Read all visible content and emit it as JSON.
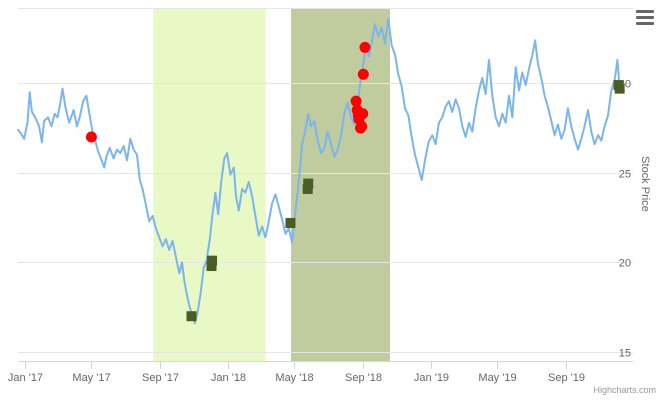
{
  "chart_data": {
    "type": "line",
    "title": "",
    "ylabel": "Stock Price",
    "ylim": [
      14.5,
      34.2
    ],
    "yticks": [
      15,
      20,
      25,
      30
    ],
    "xlim": [
      "2016-12-20",
      "2019-12-31"
    ],
    "xticks": [
      {
        "date": "2017-01-01",
        "label": "Jan '17"
      },
      {
        "date": "2017-05-01",
        "label": "May '17"
      },
      {
        "date": "2017-09-01",
        "label": "Sep '17"
      },
      {
        "date": "2018-01-01",
        "label": "Jan '18"
      },
      {
        "date": "2018-05-01",
        "label": "May '18"
      },
      {
        "date": "2018-09-01",
        "label": "Sep '18"
      },
      {
        "date": "2019-01-01",
        "label": "Jan '19"
      },
      {
        "date": "2019-05-01",
        "label": "May '19"
      },
      {
        "date": "2019-09-01",
        "label": "Sep '19"
      }
    ],
    "grid": true,
    "legend": "none",
    "bands": [
      {
        "from": "2017-08-20",
        "to": "2018-03-10",
        "color": "#e9f9c6"
      },
      {
        "from": "2018-04-25",
        "to": "2018-10-20",
        "color": "#c0cc9e"
      }
    ],
    "price_series": {
      "color": "#7cb5ec",
      "points": [
        [
          "2016-12-20",
          27.4
        ],
        [
          "2016-12-25",
          27.2
        ],
        [
          "2016-12-31",
          26.9
        ],
        [
          "2017-01-06",
          27.8
        ],
        [
          "2017-01-10",
          29.5
        ],
        [
          "2017-01-14",
          28.4
        ],
        [
          "2017-01-20",
          28.1
        ],
        [
          "2017-01-27",
          27.6
        ],
        [
          "2017-02-01",
          26.7
        ],
        [
          "2017-02-05",
          27.9
        ],
        [
          "2017-02-12",
          28.1
        ],
        [
          "2017-02-18",
          27.6
        ],
        [
          "2017-02-24",
          28.3
        ],
        [
          "2017-03-01",
          28.1
        ],
        [
          "2017-03-06",
          28.9
        ],
        [
          "2017-03-10",
          29.7
        ],
        [
          "2017-03-15",
          28.7
        ],
        [
          "2017-03-22",
          27.8
        ],
        [
          "2017-03-30",
          28.5
        ],
        [
          "2017-04-05",
          27.6
        ],
        [
          "2017-04-10",
          28.1
        ],
        [
          "2017-04-16",
          29.0
        ],
        [
          "2017-04-22",
          29.3
        ],
        [
          "2017-04-28",
          28.2
        ],
        [
          "2017-05-03",
          27.3
        ],
        [
          "2017-05-07",
          26.9
        ],
        [
          "2017-05-13",
          26.2
        ],
        [
          "2017-05-18",
          25.8
        ],
        [
          "2017-05-24",
          25.3
        ],
        [
          "2017-05-28",
          25.9
        ],
        [
          "2017-06-03",
          26.4
        ],
        [
          "2017-06-10",
          25.8
        ],
        [
          "2017-06-16",
          26.3
        ],
        [
          "2017-06-22",
          26.1
        ],
        [
          "2017-06-28",
          26.5
        ],
        [
          "2017-07-04",
          25.7
        ],
        [
          "2017-07-10",
          26.9
        ],
        [
          "2017-07-16",
          26.3
        ],
        [
          "2017-07-22",
          26.0
        ],
        [
          "2017-07-27",
          24.6
        ],
        [
          "2017-08-01",
          24.1
        ],
        [
          "2017-08-07",
          23.2
        ],
        [
          "2017-08-13",
          22.3
        ],
        [
          "2017-08-19",
          22.6
        ],
        [
          "2017-08-25",
          21.9
        ],
        [
          "2017-08-31",
          21.4
        ],
        [
          "2017-09-06",
          20.9
        ],
        [
          "2017-09-12",
          21.3
        ],
        [
          "2017-09-18",
          20.7
        ],
        [
          "2017-09-24",
          21.2
        ],
        [
          "2017-09-30",
          20.3
        ],
        [
          "2017-10-06",
          19.4
        ],
        [
          "2017-10-11",
          20.0
        ],
        [
          "2017-10-15",
          19.0
        ],
        [
          "2017-10-19",
          18.3
        ],
        [
          "2017-10-24",
          17.6
        ],
        [
          "2017-10-29",
          17.1
        ],
        [
          "2017-11-03",
          16.6
        ],
        [
          "2017-11-08",
          17.2
        ],
        [
          "2017-11-14",
          18.4
        ],
        [
          "2017-11-19",
          19.7
        ],
        [
          "2017-11-24",
          20.1
        ],
        [
          "2017-11-30",
          21.3
        ],
        [
          "2017-12-04",
          22.5
        ],
        [
          "2017-12-10",
          23.9
        ],
        [
          "2017-12-15",
          22.7
        ],
        [
          "2017-12-20",
          24.4
        ],
        [
          "2017-12-26",
          25.8
        ],
        [
          "2017-12-31",
          26.1
        ],
        [
          "2018-01-06",
          24.9
        ],
        [
          "2018-01-12",
          25.3
        ],
        [
          "2018-01-16",
          23.7
        ],
        [
          "2018-01-21",
          22.9
        ],
        [
          "2018-01-27",
          24.1
        ],
        [
          "2018-02-02",
          23.9
        ],
        [
          "2018-02-08",
          24.5
        ],
        [
          "2018-02-14",
          23.7
        ],
        [
          "2018-02-20",
          22.6
        ],
        [
          "2018-02-26",
          21.5
        ],
        [
          "2018-03-04",
          22.0
        ],
        [
          "2018-03-10",
          21.4
        ],
        [
          "2018-03-16",
          22.3
        ],
        [
          "2018-03-22",
          23.3
        ],
        [
          "2018-03-28",
          23.8
        ],
        [
          "2018-04-03",
          23.1
        ],
        [
          "2018-04-09",
          22.4
        ],
        [
          "2018-04-15",
          21.6
        ],
        [
          "2018-04-21",
          21.9
        ],
        [
          "2018-04-27",
          21.1
        ],
        [
          "2018-05-03",
          22.9
        ],
        [
          "2018-05-09",
          24.5
        ],
        [
          "2018-05-15",
          26.6
        ],
        [
          "2018-05-21",
          27.4
        ],
        [
          "2018-05-26",
          28.3
        ],
        [
          "2018-05-31",
          27.6
        ],
        [
          "2018-06-06",
          27.9
        ],
        [
          "2018-06-12",
          26.8
        ],
        [
          "2018-06-18",
          26.1
        ],
        [
          "2018-06-24",
          26.4
        ],
        [
          "2018-06-30",
          27.3
        ],
        [
          "2018-07-06",
          26.6
        ],
        [
          "2018-07-12",
          25.9
        ],
        [
          "2018-07-18",
          26.3
        ],
        [
          "2018-07-24",
          27.1
        ],
        [
          "2018-07-30",
          28.3
        ],
        [
          "2018-08-05",
          28.9
        ],
        [
          "2018-08-11",
          28.1
        ],
        [
          "2018-08-17",
          27.7
        ],
        [
          "2018-08-22",
          28.6
        ],
        [
          "2018-08-28",
          30.1
        ],
        [
          "2018-09-02",
          31.1
        ],
        [
          "2018-09-07",
          32.1
        ],
        [
          "2018-09-12",
          31.5
        ],
        [
          "2018-09-17",
          32.3
        ],
        [
          "2018-09-23",
          33.3
        ],
        [
          "2018-09-29",
          32.6
        ],
        [
          "2018-10-05",
          33.1
        ],
        [
          "2018-10-11",
          32.2
        ],
        [
          "2018-10-17",
          33.6
        ],
        [
          "2018-10-23",
          32.1
        ],
        [
          "2018-10-29",
          31.6
        ],
        [
          "2018-11-04",
          30.5
        ],
        [
          "2018-11-10",
          29.8
        ],
        [
          "2018-11-16",
          28.6
        ],
        [
          "2018-11-22",
          28.2
        ],
        [
          "2018-11-28",
          27.0
        ],
        [
          "2018-12-04",
          26.0
        ],
        [
          "2018-12-10",
          25.3
        ],
        [
          "2018-12-16",
          24.6
        ],
        [
          "2018-12-22",
          25.7
        ],
        [
          "2018-12-28",
          26.7
        ],
        [
          "2019-01-04",
          27.1
        ],
        [
          "2019-01-10",
          26.6
        ],
        [
          "2019-01-16",
          27.8
        ],
        [
          "2019-01-22",
          28.1
        ],
        [
          "2019-01-28",
          28.7
        ],
        [
          "2019-02-03",
          29.0
        ],
        [
          "2019-02-09",
          28.4
        ],
        [
          "2019-02-15",
          29.1
        ],
        [
          "2019-02-21",
          28.6
        ],
        [
          "2019-02-27",
          27.6
        ],
        [
          "2019-03-05",
          27.0
        ],
        [
          "2019-03-11",
          27.8
        ],
        [
          "2019-03-17",
          27.3
        ],
        [
          "2019-03-23",
          28.6
        ],
        [
          "2019-03-29",
          29.6
        ],
        [
          "2019-04-04",
          30.3
        ],
        [
          "2019-04-10",
          29.4
        ],
        [
          "2019-04-16",
          31.3
        ],
        [
          "2019-04-22",
          29.3
        ],
        [
          "2019-04-28",
          28.1
        ],
        [
          "2019-05-04",
          27.6
        ],
        [
          "2019-05-10",
          28.3
        ],
        [
          "2019-05-16",
          27.8
        ],
        [
          "2019-05-22",
          29.3
        ],
        [
          "2019-05-28",
          28.1
        ],
        [
          "2019-06-03",
          30.9
        ],
        [
          "2019-06-09",
          29.6
        ],
        [
          "2019-06-15",
          30.6
        ],
        [
          "2019-06-21",
          29.9
        ],
        [
          "2019-06-27",
          30.8
        ],
        [
          "2019-07-03",
          31.6
        ],
        [
          "2019-07-08",
          32.4
        ],
        [
          "2019-07-13",
          31.1
        ],
        [
          "2019-07-19",
          30.3
        ],
        [
          "2019-07-25",
          29.3
        ],
        [
          "2019-07-31",
          28.7
        ],
        [
          "2019-08-06",
          27.9
        ],
        [
          "2019-08-12",
          27.1
        ],
        [
          "2019-08-18",
          27.7
        ],
        [
          "2019-08-24",
          26.9
        ],
        [
          "2019-08-30",
          27.4
        ],
        [
          "2019-09-05",
          28.6
        ],
        [
          "2019-09-11",
          27.6
        ],
        [
          "2019-09-17",
          26.9
        ],
        [
          "2019-09-23",
          26.3
        ],
        [
          "2019-09-29",
          26.9
        ],
        [
          "2019-10-05",
          27.6
        ],
        [
          "2019-10-11",
          28.5
        ],
        [
          "2019-10-17",
          27.3
        ],
        [
          "2019-10-23",
          26.6
        ],
        [
          "2019-10-29",
          27.1
        ],
        [
          "2019-11-04",
          26.8
        ],
        [
          "2019-11-10",
          27.6
        ],
        [
          "2019-11-16",
          28.2
        ],
        [
          "2019-11-22",
          29.6
        ],
        [
          "2019-11-28",
          30.2
        ],
        [
          "2019-12-03",
          31.3
        ],
        [
          "2019-12-06",
          30.1
        ]
      ]
    },
    "markers": {
      "red": {
        "color": "#ff0000",
        "points": [
          [
            "2017-05-01",
            27.0
          ],
          [
            "2018-08-20",
            29.0
          ],
          [
            "2018-08-22",
            28.5
          ],
          [
            "2018-08-24",
            28.2
          ],
          [
            "2018-08-25",
            28.0
          ],
          [
            "2018-08-28",
            27.5
          ],
          [
            "2018-08-30",
            27.6
          ],
          [
            "2018-09-01",
            28.3
          ],
          [
            "2018-09-02",
            30.5
          ],
          [
            "2018-09-05",
            32.0
          ]
        ]
      },
      "green": {
        "color": "#4a5e23",
        "points": [
          [
            "2017-10-28",
            17.0
          ],
          [
            "2017-12-03",
            19.8
          ],
          [
            "2017-12-04",
            20.1
          ],
          [
            "2018-04-24",
            22.2
          ],
          [
            "2018-05-25",
            24.1
          ],
          [
            "2018-05-26",
            24.4
          ],
          [
            "2019-12-05",
            29.9
          ],
          [
            "2019-12-07",
            29.7
          ]
        ]
      }
    }
  },
  "credits": "Highcharts.com",
  "menu_icon": "hamburger-menu-icon"
}
